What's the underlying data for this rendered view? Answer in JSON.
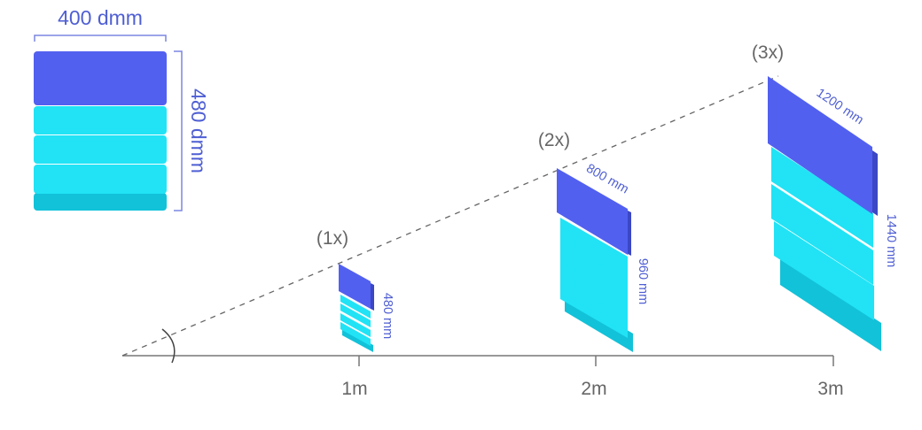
{
  "reference_card": {
    "width_label": "400 dmm",
    "height_label": "480 dmm"
  },
  "multipliers": [
    "(1x)",
    "(2x)",
    "(3x)"
  ],
  "distances": [
    "1m",
    "2m",
    "3m"
  ],
  "cards": [
    {
      "width_label": "",
      "height_label": "480 mm"
    },
    {
      "width_label": "800 mm",
      "height_label": "960 mm"
    },
    {
      "width_label": "1200 mm",
      "height_label": "1440 mm"
    }
  ],
  "colors": {
    "top_block": "#5260F0",
    "top_block_side": "#3B47C4",
    "layer": "#21E3F5",
    "layer_side": "#12C2D9",
    "annotation_text": "#4F5FD3",
    "label_text": "#666666",
    "axis": "#777777",
    "sight_line": "#666666"
  }
}
